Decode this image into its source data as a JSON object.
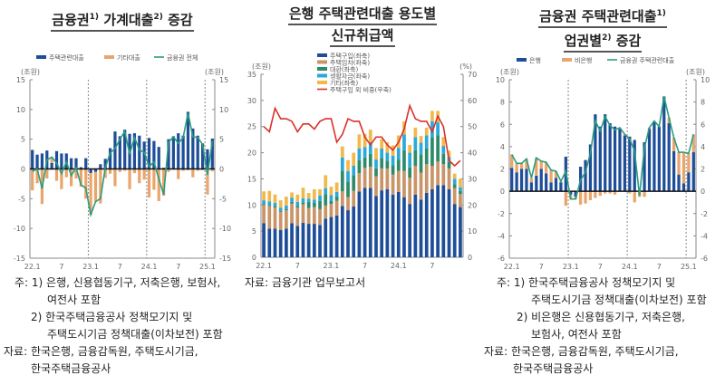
{
  "titles": [
    {
      "parts": [
        "금융권",
        "1)",
        " 가계대출",
        "2)",
        " 증감"
      ]
    },
    {
      "line1": "은행 주택관련대출 용도별",
      "line2": "신규취급액"
    },
    {
      "line1": [
        "금융권 주택관련대출",
        "1)"
      ],
      "line2": [
        "업권별",
        "2)",
        " 증감"
      ]
    }
  ],
  "notes_left": {
    "lines": [
      "주: 1) 은행, 신용협동기구, 저축은행, 보험사,",
      "여전사 포함",
      "2) 한국주택금융공사 정책모기지 및",
      "주택도시기금 정책대출(이차보전) 포함",
      "자료: 한국은행, 금융감독원, 주택도시기금,",
      "한국주택금융공사"
    ]
  },
  "notes_middle": {
    "source": "자료: 금융기관 업무보고서"
  },
  "notes_right": {
    "lines": [
      "주: 1) 한국주택금융공사 정책모기지 및",
      "주택도시기금 정책대출(이차보전) 포함",
      "2) 비은행은 신용협동기구, 저축은행,",
      "보험사, 여전사 포함",
      "자료: 한국은행, 금융감독원, 주택도시기금,",
      "한국주택금융공사"
    ]
  },
  "chart_data": [
    {
      "type": "bar",
      "stacked": true,
      "unit_left": "(조원)",
      "unit_right": "(조원)",
      "ylim": [
        -15,
        15
      ],
      "ylim_right": [
        -15,
        15
      ],
      "yticks": [
        "-15",
        "-10",
        "-5",
        "0",
        "5",
        "10",
        "15"
      ],
      "yticks_right": [
        "-15",
        "-10",
        "-5",
        "0",
        "5",
        "10",
        "15"
      ],
      "categories": [
        "22.1",
        "22.2",
        "22.3",
        "22.4",
        "22.5",
        "22.6",
        "22.7",
        "22.8",
        "22.9",
        "22.10",
        "22.11",
        "22.12",
        "23.1",
        "23.2",
        "23.3",
        "23.4",
        "23.5",
        "23.6",
        "23.7",
        "23.8",
        "23.9",
        "23.10",
        "23.11",
        "23.12",
        "24.1",
        "24.2",
        "24.3",
        "24.4",
        "24.5",
        "24.6",
        "24.7",
        "24.8",
        "24.9",
        "24.10",
        "24.11",
        "24.12",
        "25.1",
        "25.2"
      ],
      "xticks": [
        {
          "at": "22.1",
          "label": "22.1"
        },
        {
          "at": "22.7",
          "label": "7"
        },
        {
          "at": "23.1",
          "label": "23.1"
        },
        {
          "at": "23.7",
          "label": "7"
        },
        {
          "at": "24.1",
          "label": "24.1"
        },
        {
          "at": "24.7",
          "label": "7"
        },
        {
          "at": "25.1",
          "label": "25.1"
        }
      ],
      "dividers": [
        "23.1",
        "24.1",
        "25.1"
      ],
      "bars": [
        {
          "name": "주택관련대출",
          "color": "#1f4e99",
          "values": [
            3.2,
            2.4,
            2.6,
            3.1,
            1.0,
            3.0,
            2.6,
            2.6,
            1.8,
            1.8,
            0.3,
            1.8,
            -0.7,
            -0.5,
            0.8,
            1.7,
            3.5,
            6.3,
            5.5,
            6.6,
            5.9,
            6.0,
            5.6,
            4.6,
            5.2,
            4.7,
            3.7,
            0.2,
            5.0,
            5.5,
            6.0,
            5.6,
            9.6,
            6.8,
            5.6,
            4.3,
            3.3,
            5.1
          ]
        },
        {
          "name": "기타대출",
          "color": "#e9a56c",
          "values": [
            -3.6,
            -2.4,
            -5.9,
            -1.6,
            1.0,
            -2.0,
            -3.4,
            -1.4,
            -2.9,
            -1.6,
            -3.0,
            -5.0,
            -7.0,
            -5.0,
            -5.8,
            -1.5,
            -0.8,
            -2.9,
            -0.5,
            -0.3,
            -3.4,
            -0.7,
            -2.4,
            -1.8,
            -4.8,
            -3.5,
            -5.4,
            -4.5,
            -0.5,
            -0.1,
            -1.7,
            -0.3,
            -0.2,
            -1.4,
            -0.3,
            -0.2,
            -4.3,
            -0.4
          ]
        }
      ],
      "lines": [
        {
          "name": "금융권 전체",
          "color": "#2a9d7f",
          "axis": "left",
          "values": [
            -0.4,
            0.0,
            -3.3,
            1.5,
            2.0,
            1.0,
            -0.8,
            1.2,
            -1.1,
            0.2,
            -2.7,
            -3.2,
            -7.7,
            -5.5,
            -5.0,
            0.2,
            2.7,
            3.4,
            5.0,
            6.3,
            2.5,
            5.3,
            3.2,
            2.8,
            0.4,
            1.2,
            -1.7,
            -4.3,
            4.5,
            5.4,
            4.3,
            5.3,
            9.4,
            5.4,
            5.3,
            4.1,
            -1.0,
            4.7
          ]
        }
      ],
      "legend": "top"
    },
    {
      "type": "bar",
      "stacked": true,
      "unit_left": "(조원)",
      "unit_right": "(%)",
      "ylim": [
        0,
        35
      ],
      "ylim_right": [
        0,
        70
      ],
      "yticks": [
        "0",
        "5",
        "10",
        "15",
        "20",
        "25",
        "30",
        "35"
      ],
      "yticks_right": [
        "0",
        "10",
        "20",
        "30",
        "40",
        "50",
        "60",
        "70"
      ],
      "categories": [
        "22.1",
        "22.2",
        "22.3",
        "22.4",
        "22.5",
        "22.6",
        "22.7",
        "22.8",
        "22.9",
        "22.10",
        "22.11",
        "22.12",
        "23.1",
        "23.2",
        "23.3",
        "23.4",
        "23.5",
        "23.6",
        "23.7",
        "23.8",
        "23.9",
        "23.10",
        "23.11",
        "23.12",
        "24.1",
        "24.2",
        "24.3",
        "24.4",
        "24.5",
        "24.6",
        "24.7",
        "24.8",
        "24.9",
        "24.10",
        "24.11",
        "24.12"
      ],
      "xticks": [
        {
          "at": "22.1",
          "label": "22.1"
        },
        {
          "at": "22.7",
          "label": "7"
        },
        {
          "at": "23.1",
          "label": "23.1"
        },
        {
          "at": "23.7",
          "label": "7"
        },
        {
          "at": "24.1",
          "label": "24.1"
        },
        {
          "at": "24.7",
          "label": "7"
        }
      ],
      "dividers": [],
      "bars": [
        {
          "name": "주택구입(좌축)",
          "color": "#1f4e99",
          "values": [
            6.5,
            5.5,
            5.5,
            5.2,
            5.5,
            6.5,
            6.0,
            6.6,
            6.4,
            6.4,
            6.2,
            7.4,
            7.7,
            8.0,
            9.8,
            9.0,
            9.7,
            12.6,
            13.3,
            13.3,
            11.7,
            12.8,
            13.0,
            12.0,
            12.5,
            11.5,
            10.2,
            12.0,
            11.0,
            12.3,
            13.0,
            13.8,
            13.8,
            13.0,
            10.2,
            9.6
          ]
        },
        {
          "name": "주택임차(좌축)",
          "color": "#c99468",
          "values": [
            3.5,
            4.3,
            4.0,
            3.5,
            3.5,
            3.8,
            3.5,
            3.5,
            3.0,
            3.2,
            3.0,
            2.5,
            2.5,
            2.8,
            2.8,
            2.5,
            3.0,
            3.5,
            3.8,
            4.0,
            3.8,
            4.2,
            4.0,
            3.8,
            4.0,
            5.0,
            5.0,
            5.5,
            5.2,
            5.5,
            4.5,
            4.5,
            4.0,
            4.0,
            3.0,
            2.5
          ]
        },
        {
          "name": "대환(좌축)",
          "color": "#2e8b6a",
          "values": [
            0.2,
            0.2,
            0.2,
            0.2,
            0.2,
            0.3,
            0.3,
            0.4,
            1.2,
            0.8,
            1.6,
            2.2,
            0.6,
            0.8,
            4.0,
            3.0,
            3.0,
            2.5,
            2.0,
            2.5,
            1.5,
            2.0,
            1.5,
            1.8,
            2.2,
            4.0,
            2.0,
            3.0,
            3.5,
            3.0,
            5.5,
            5.0,
            2.0,
            1.2,
            0.8,
            0.6
          ]
        },
        {
          "name": "생활자금(좌축)",
          "color": "#2ba9da",
          "values": [
            0.7,
            0.7,
            0.7,
            0.6,
            0.7,
            0.8,
            0.8,
            0.8,
            0.6,
            0.6,
            1.0,
            1.1,
            1.1,
            0.9,
            2.5,
            2.0,
            1.8,
            2.2,
            2.0,
            2.2,
            1.7,
            1.8,
            1.5,
            1.8,
            2.2,
            3.0,
            2.8,
            2.5,
            2.2,
            2.5,
            3.0,
            2.5,
            1.5,
            1.0,
            1.0,
            0.7
          ]
        },
        {
          "name": "기타(좌축)",
          "color": "#f2b84b",
          "values": [
            1.7,
            2.0,
            1.6,
            1.4,
            1.7,
            1.0,
            1.4,
            2.0,
            1.1,
            2.0,
            1.2,
            2.5,
            1.6,
            1.8,
            2.1,
            2.1,
            2.5,
            2.7,
            2.5,
            2.4,
            2.2,
            1.8,
            2.0,
            2.0,
            2.4,
            2.5,
            1.5,
            1.8,
            1.3,
            1.5,
            2.0,
            2.2,
            1.7,
            1.2,
            1.0,
            1.6
          ]
        }
      ],
      "lines": [
        {
          "name": "주택구입 외 비중(우축)",
          "color": "#d9312b",
          "axis": "right",
          "values": [
            50,
            48,
            57,
            53,
            53,
            52,
            48,
            51,
            51,
            49,
            52,
            53,
            53,
            44,
            47,
            53,
            52,
            52,
            46,
            43,
            46,
            46,
            43,
            41,
            44,
            49,
            58,
            53,
            52,
            52,
            48,
            54,
            50,
            37,
            35,
            37
          ]
        }
      ],
      "legend": "top-left"
    },
    {
      "type": "bar",
      "stacked": true,
      "unit_left": "(조원)",
      "unit_right": "(조원)",
      "ylim": [
        -6,
        10
      ],
      "ylim_right": [
        -6,
        10
      ],
      "yticks": [
        "-6",
        "-4",
        "-2",
        "0",
        "2",
        "4",
        "6",
        "8",
        "10"
      ],
      "yticks_right": [
        "-6",
        "-4",
        "-2",
        "0",
        "2",
        "4",
        "6",
        "8",
        "10"
      ],
      "categories": [
        "22.1",
        "22.2",
        "22.3",
        "22.4",
        "22.5",
        "22.6",
        "22.7",
        "22.8",
        "22.9",
        "22.10",
        "22.11",
        "22.12",
        "23.1",
        "23.2",
        "23.3",
        "23.4",
        "23.5",
        "23.6",
        "23.7",
        "23.8",
        "23.9",
        "23.10",
        "23.11",
        "23.12",
        "24.1",
        "24.2",
        "24.3",
        "24.4",
        "24.5",
        "24.6",
        "24.7",
        "24.8",
        "24.9",
        "24.10",
        "24.11",
        "24.12",
        "25.1",
        "25.2"
      ],
      "xticks": [
        {
          "at": "22.1",
          "label": "22.1"
        },
        {
          "at": "22.7",
          "label": "7"
        },
        {
          "at": "23.1",
          "label": "23.1"
        },
        {
          "at": "23.7",
          "label": "7"
        },
        {
          "at": "24.1",
          "label": "24.1"
        },
        {
          "at": "24.7",
          "label": "7"
        },
        {
          "at": "25.1",
          "label": "25.1"
        }
      ],
      "dividers": [
        "23.1",
        "24.1",
        "25.1"
      ],
      "bars": [
        {
          "name": "은행",
          "color": "#1f4e99",
          "values": [
            2.1,
            1.7,
            2.0,
            2.0,
            0.8,
            1.4,
            2.0,
            1.6,
            0.8,
            1.2,
            0.8,
            3.1,
            -0.3,
            -0.5,
            2.2,
            2.8,
            4.2,
            6.9,
            5.8,
            6.9,
            6.1,
            5.8,
            5.6,
            5.0,
            4.9,
            4.6,
            0.1,
            4.4,
            5.6,
            6.2,
            5.8,
            8.5,
            6.1,
            3.6,
            1.5,
            0.7,
            1.7,
            3.5
          ]
        },
        {
          "name": "비은행",
          "color": "#e9a56c",
          "values": [
            1.2,
            0.8,
            0.5,
            0.9,
            0.4,
            1.6,
            0.7,
            1.0,
            1.1,
            0.6,
            0.1,
            -1.3,
            -0.4,
            -0.2,
            -1.2,
            -1.1,
            -0.8,
            -0.6,
            -0.4,
            -0.2,
            -0.2,
            -0.3,
            0.1,
            0.1,
            -0.2,
            -1.0,
            -0.5,
            -0.5,
            0.1,
            0.1,
            0.0,
            0.0,
            0.5,
            1.2,
            2.0,
            2.8,
            1.7,
            1.6
          ]
        }
      ],
      "lines": [
        {
          "name": "금융권 주택관련대출",
          "color": "#2a9d7f",
          "axis": "left",
          "values": [
            3.3,
            2.5,
            2.5,
            2.9,
            1.2,
            3.0,
            2.7,
            2.6,
            1.9,
            1.8,
            0.9,
            1.8,
            -0.7,
            -0.7,
            1.0,
            1.7,
            3.4,
            6.3,
            5.4,
            6.7,
            5.9,
            5.5,
            5.7,
            5.1,
            4.7,
            3.6,
            -0.4,
            3.9,
            5.7,
            6.3,
            5.8,
            8.5,
            6.6,
            4.8,
            3.5,
            3.5,
            3.4,
            5.1
          ]
        }
      ],
      "legend": "top"
    }
  ]
}
